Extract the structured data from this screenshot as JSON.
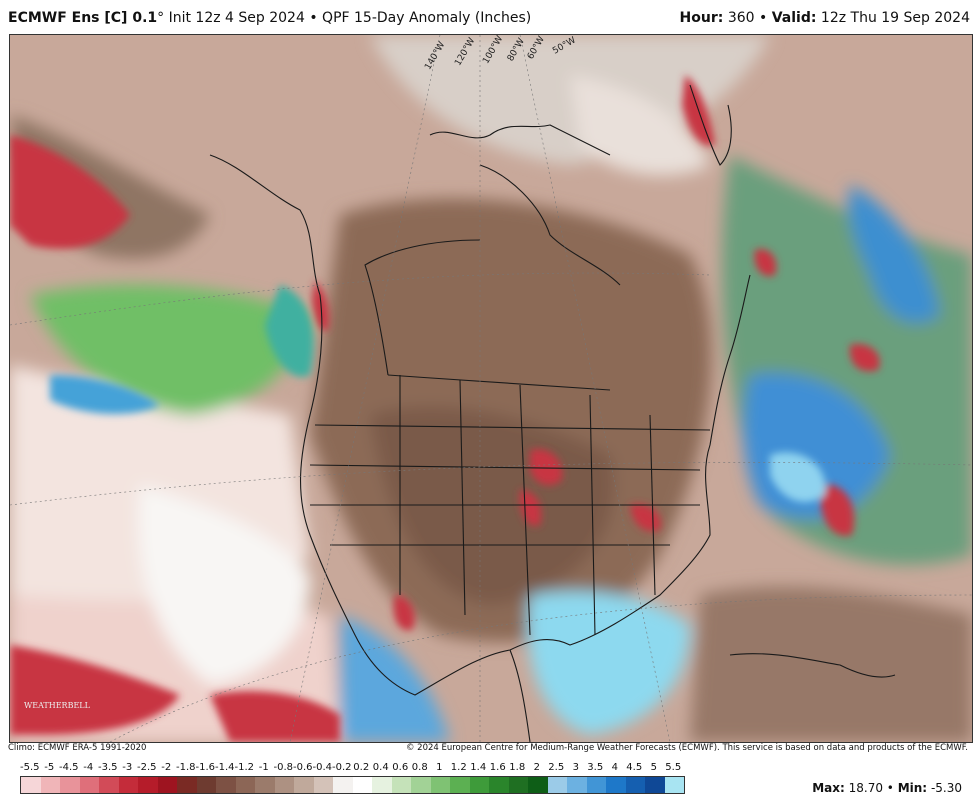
{
  "header": {
    "model": "ECMWF Ens [C] 0.1",
    "degree": "°",
    "init": "Init 12z 4 Sep 2024",
    "separator": "•",
    "product": "QPF 15-Day Anomaly (Inches)",
    "hour_label": "Hour:",
    "hour_value": "360",
    "valid_label": "Valid:",
    "valid_value": "12z Thu 19 Sep 2024"
  },
  "map": {
    "lon_labels": [
      "140°W",
      "120°W",
      "100°W",
      "80°W",
      "60°W",
      "50°W"
    ],
    "logo_text": "WEATHERBELL"
  },
  "credits": {
    "left": "Climo: ECMWF ERA-5 1991-2020",
    "right": "© 2024 European Centre for Medium-Range Weather Forecasts (ECMWF). This service is based on data and products of the ECMWF."
  },
  "scale": {
    "ticks": [
      "-5.5",
      "-5",
      "-4.5",
      "-4",
      "-3.5",
      "-3",
      "-2.5",
      "-2",
      "-1.8",
      "-1.6",
      "-1.4",
      "-1.2",
      "-1",
      "-0.8",
      "-0.6",
      "-0.4",
      "-0.2",
      "0.2",
      "0.4",
      "0.6",
      "0.8",
      "1",
      "1.2",
      "1.4",
      "1.6",
      "1.8",
      "2",
      "2.5",
      "3",
      "3.5",
      "4",
      "4.5",
      "5",
      "5.5"
    ],
    "colors": [
      "#f6d6d8",
      "#f0b5b8",
      "#e8939a",
      "#df6f7a",
      "#d24b58",
      "#c42c3a",
      "#b51c2a",
      "#9e1420",
      "#7a2a24",
      "#6e3b30",
      "#7d5144",
      "#8c6656",
      "#9b7b6b",
      "#ad9182",
      "#c0a99b",
      "#d4c2b8",
      "#f4f2f0",
      "#ffffff",
      "#e6f2e0",
      "#c5e2b9",
      "#a2d296",
      "#7fc273",
      "#5cb052",
      "#3e9b3a",
      "#2a852b",
      "#1f6f22",
      "#0e5e17",
      "#9bcbe8",
      "#6cb1e1",
      "#4195d6",
      "#1e78c9",
      "#155fb0",
      "#0f4896",
      "#a8e4f2"
    ],
    "stats_max_label": "Max:",
    "stats_max": "18.70",
    "stats_min_label": "Min:",
    "stats_min": "-5.30"
  }
}
